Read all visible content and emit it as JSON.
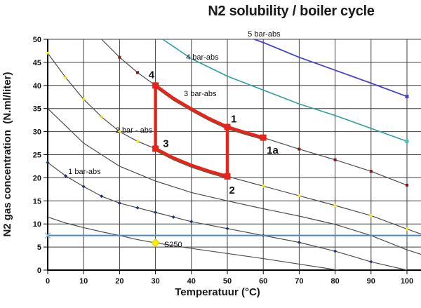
{
  "title": "N2 solubility / boiler cycle",
  "axes": {
    "x": {
      "label": "Temperatuur (°C)",
      "min": 0,
      "max": 100,
      "ticks": [
        0,
        10,
        20,
        30,
        40,
        50,
        60,
        70,
        80,
        90,
        100
      ]
    },
    "y": {
      "label": "N2 gas concentration  (N.ml/liter)",
      "min": 0,
      "max": 50,
      "ticks": [
        0,
        5,
        10,
        15,
        20,
        25,
        30,
        35,
        40,
        45,
        50
      ]
    }
  },
  "chart_data": {
    "type": "line",
    "xlabel": "Temperatuur (°C)",
    "ylabel": "N2 gas concentration  (N.ml/liter)",
    "xlim": [
      0,
      104
    ],
    "ylim": [
      0,
      50
    ],
    "grid": {
      "x_step": 10,
      "y_step": 5
    },
    "series": [
      {
        "id": "half-bar",
        "label": null,
        "color": "#4d4d4d",
        "width": 1.2,
        "points": [
          [
            0,
            11.5
          ],
          [
            5,
            10.2
          ],
          [
            10,
            9.2
          ],
          [
            15,
            8.3
          ],
          [
            20,
            7.5
          ],
          [
            25,
            6.6
          ],
          [
            30,
            5.9
          ],
          [
            35,
            5.3
          ],
          [
            40,
            4.7
          ],
          [
            50,
            3.6
          ],
          [
            60,
            2.5
          ],
          [
            70,
            1.3
          ],
          [
            80,
            0.1
          ],
          [
            81,
            0
          ]
        ],
        "marker": null,
        "marker_at": []
      },
      {
        "id": "1-bar",
        "label": "1 bar-abs",
        "color": "#4d4d4d",
        "width": 1.2,
        "points": [
          [
            0,
            23.3
          ],
          [
            5,
            20.4
          ],
          [
            10,
            18.1
          ],
          [
            15,
            16.0
          ],
          [
            20,
            14.5
          ],
          [
            25,
            13.5
          ],
          [
            30,
            12.5
          ],
          [
            35,
            11.5
          ],
          [
            40,
            10.5
          ],
          [
            50,
            9.0
          ],
          [
            60,
            7.5
          ],
          [
            70,
            6.0
          ],
          [
            80,
            4.1
          ],
          [
            90,
            1.8
          ],
          [
            100,
            0
          ]
        ],
        "marker": "diamond",
        "marker_color": "#20307e",
        "marker_size": 5,
        "marker_at": [
          0,
          5,
          10,
          15,
          20,
          25,
          30,
          35,
          40,
          50,
          60,
          70,
          80,
          90
        ]
      },
      {
        "id": "1p5-bar",
        "label": null,
        "color": "#4d4d4d",
        "width": 1.2,
        "points": [
          [
            0,
            35
          ],
          [
            10,
            27.5
          ],
          [
            20,
            22.5
          ],
          [
            30,
            19.3
          ],
          [
            40,
            16.8
          ],
          [
            50,
            15.0
          ],
          [
            60,
            13.3
          ],
          [
            70,
            11.7
          ],
          [
            80,
            9.9
          ],
          [
            90,
            7.5
          ],
          [
            100,
            4.4
          ],
          [
            104,
            3.4
          ]
        ],
        "marker": null,
        "marker_at": []
      },
      {
        "id": "2-bar",
        "label": "2 bar - abs",
        "color": "#4d4d4d",
        "width": 1.2,
        "points": [
          [
            0,
            47
          ],
          [
            5,
            41.7
          ],
          [
            10,
            37
          ],
          [
            15,
            33.2
          ],
          [
            20,
            30
          ],
          [
            25,
            27.9
          ],
          [
            30,
            26.3
          ],
          [
            35,
            24.3
          ],
          [
            40,
            22.7
          ],
          [
            50,
            20.3
          ],
          [
            60,
            18.2
          ],
          [
            70,
            16.1
          ],
          [
            80,
            14.0
          ],
          [
            90,
            11.8
          ],
          [
            100,
            8.9
          ],
          [
            104,
            7.8
          ]
        ],
        "marker": "diamond",
        "marker_color": "#f5e400",
        "marker_size": 5,
        "marker_at": [
          0,
          5,
          10,
          15,
          20,
          25,
          30,
          35,
          40,
          50,
          60,
          70,
          80,
          90,
          100
        ]
      },
      {
        "id": "3-bar",
        "label": "3 bar-abs",
        "color": "#4d4d4d",
        "width": 1.2,
        "points": [
          [
            15,
            50
          ],
          [
            20,
            46.1
          ],
          [
            25,
            42.8
          ],
          [
            30,
            40.0
          ],
          [
            35,
            37.2
          ],
          [
            40,
            34.9
          ],
          [
            45,
            32.8
          ],
          [
            50,
            31.0
          ],
          [
            55,
            29.8
          ],
          [
            60,
            28.7
          ],
          [
            70,
            26.2
          ],
          [
            80,
            23.9
          ],
          [
            90,
            21.4
          ],
          [
            100,
            18.4
          ]
        ],
        "marker": "square",
        "marker_color": "#7e1d12",
        "marker_size": 4,
        "marker_at": [
          20,
          25,
          35,
          40,
          45,
          55,
          70,
          80,
          90,
          100
        ]
      },
      {
        "id": "4-bar",
        "label": "4 bar-abs",
        "color": "#2fa0a0",
        "width": 1.6,
        "points": [
          [
            32,
            50
          ],
          [
            40,
            45.8
          ],
          [
            50,
            42.0
          ],
          [
            60,
            39.0
          ],
          [
            70,
            36.0
          ],
          [
            80,
            33.5
          ],
          [
            90,
            30.7
          ],
          [
            100,
            27.9
          ]
        ],
        "marker": "square",
        "marker_color": "#3bc2ba",
        "marker_size": 5,
        "marker_at": [
          100
        ]
      },
      {
        "id": "5-bar",
        "label": "5 bar-abs",
        "color": "#4343cc",
        "width": 1.8,
        "points": [
          [
            57.5,
            50
          ],
          [
            60,
            49.3
          ],
          [
            70,
            46.1
          ],
          [
            80,
            43.3
          ],
          [
            90,
            40.5
          ],
          [
            100,
            37.6
          ]
        ],
        "marker": "square",
        "marker_color": "#4343cc",
        "marker_size": 5,
        "marker_at": [
          100
        ]
      }
    ],
    "reference_line": {
      "id": "blue-hline",
      "value": 7.5,
      "color": "#4e86c0",
      "width": 2,
      "end_marker": "x",
      "end_marker_color": "#9fc3e8"
    },
    "special_point": {
      "id": "S250",
      "label": "S250",
      "t": 30,
      "v": 5.9,
      "marker": "diamond",
      "color": "#ffee00",
      "edge": "#d8c400",
      "size": 11
    },
    "cycle": {
      "color": "#e8241a",
      "line_width": 4.5,
      "vertex_size": 9,
      "shadow_color": "#33774d",
      "points": {
        "p1": [
          50,
          31.0
        ],
        "p1a": [
          60,
          28.7
        ],
        "p2": [
          50,
          20.3
        ],
        "p3": [
          30,
          26.3
        ],
        "p4": [
          30,
          40.0
        ]
      },
      "segments": [
        {
          "name": "seg-4-1a",
          "curved": true,
          "pts": [
            [
              30,
              40.0
            ],
            [
              35,
              37.2
            ],
            [
              40,
              34.9
            ],
            [
              45,
              32.8
            ],
            [
              50,
              31.0
            ],
            [
              55,
              29.8
            ],
            [
              60,
              28.7
            ]
          ]
        },
        {
          "name": "seg-1-2",
          "curved": false,
          "pts": [
            [
              50,
              31.0
            ],
            [
              50,
              20.3
            ]
          ]
        },
        {
          "name": "seg-2-3",
          "curved": true,
          "pts": [
            [
              50,
              20.3
            ],
            [
              45,
              21.4
            ],
            [
              40,
              22.7
            ],
            [
              35,
              24.3
            ],
            [
              30,
              26.3
            ]
          ]
        },
        {
          "name": "seg-3-4",
          "curved": false,
          "pts": [
            [
              30,
              26.3
            ],
            [
              30,
              40.0
            ]
          ]
        }
      ]
    },
    "annotations": {
      "curve_labels": [
        {
          "id": "label-5-bar",
          "text": "5 bar-abs",
          "t": 55.7,
          "v": 50.6
        },
        {
          "id": "label-4-bar",
          "text": "4 bar-abs",
          "t": 38.5,
          "v": 45.6
        },
        {
          "id": "label-3-bar",
          "text": "3 bar-abs",
          "t": 37.9,
          "v": 37.7
        },
        {
          "id": "label-2-bar",
          "text": "2 bar - abs",
          "t": 18.9,
          "v": 29.8
        },
        {
          "id": "label-1-bar",
          "text": "1 bar-abs",
          "t": 5.7,
          "v": 20.8
        },
        {
          "id": "label-s250",
          "text": "S250",
          "t": 32.4,
          "v": 5.0
        }
      ],
      "point_labels": [
        {
          "id": "label-point-4",
          "text": "4",
          "t": 28.9,
          "v": 41.6
        },
        {
          "id": "label-point-1",
          "text": "1",
          "t": 51.8,
          "v": 32.0
        },
        {
          "id": "label-point-1a",
          "text": "1a",
          "t": 62.6,
          "v": 25.2
        },
        {
          "id": "label-point-2",
          "text": "2",
          "t": 51.3,
          "v": 16.6
        },
        {
          "id": "label-point-3",
          "text": "3",
          "t": 32.9,
          "v": 26.7
        }
      ]
    }
  }
}
